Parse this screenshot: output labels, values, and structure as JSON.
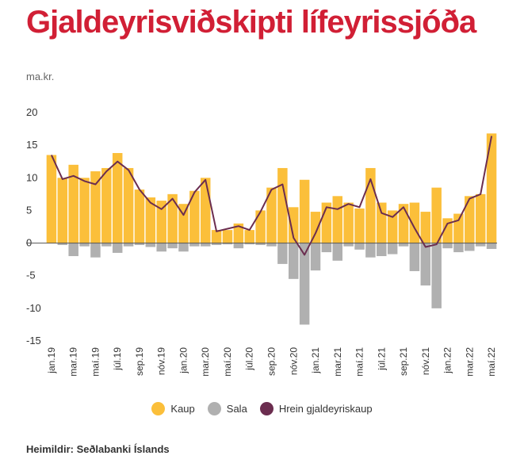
{
  "title": "Gjaldeyrisviðskipti lífeyrissjóða",
  "unit": "ma.kr.",
  "source": "Heimildir: Seðlabanki Íslands",
  "colors": {
    "title": "#d11f35",
    "kaup": "#fbbf3a",
    "sala": "#b0b0b0",
    "hrein": "#6b2d4f"
  },
  "legend": [
    {
      "label": "Kaup",
      "color": "#fbbf3a"
    },
    {
      "label": "Sala",
      "color": "#b0b0b0"
    },
    {
      "label": "Hrein gjaldeyriskaup",
      "color": "#6b2d4f"
    }
  ],
  "chart_data": {
    "type": "bar",
    "ylabel": "ma.kr.",
    "ylim": [
      -15,
      20
    ],
    "yticks": [
      20,
      15,
      10,
      5,
      0,
      -5,
      -10,
      -15
    ],
    "grid": false,
    "legend_position": "bottom",
    "x": [
      "jan.19",
      "feb.19",
      "mar.19",
      "apr.19",
      "maí.19",
      "jún.19",
      "júl.19",
      "ágú.19",
      "sep.19",
      "okt.19",
      "nóv.19",
      "des.19",
      "jan.20",
      "feb.20",
      "mar.20",
      "apr.20",
      "maí.20",
      "jún.20",
      "júl.20",
      "ágú.20",
      "sep.20",
      "okt.20",
      "nóv.20",
      "des.20",
      "jan.21",
      "feb.21",
      "mar.21",
      "apr.21",
      "maí.21",
      "jún.21",
      "júl.21",
      "ágú.21",
      "sep.21",
      "okt.21",
      "nóv.21",
      "des.21",
      "jan.22",
      "feb.22",
      "mar.22",
      "apr.22",
      "maí.22"
    ],
    "tick_labels": [
      "jan.19",
      "mar.19",
      "maí.19",
      "júl.19",
      "sep.19",
      "nóv.19",
      "jan.20",
      "mar.20",
      "maí.20",
      "júl.20",
      "sep.20",
      "nóv.20",
      "jan.21",
      "mar.21",
      "maí.21",
      "júl.21",
      "sep.21",
      "nóv.21",
      "jan.22",
      "mar.22",
      "maí.22"
    ],
    "series": [
      {
        "name": "Kaup",
        "type": "bar",
        "values": [
          13.5,
          10.0,
          12.0,
          10.0,
          11.0,
          11.5,
          13.8,
          11.5,
          8.2,
          7.0,
          6.5,
          7.5,
          6.0,
          8.0,
          10.0,
          2.0,
          2.0,
          3.0,
          2.0,
          5.0,
          8.5,
          11.5,
          5.5,
          9.7,
          4.8,
          6.2,
          7.2,
          6.2,
          5.3,
          11.5,
          6.2,
          5.0,
          6.0,
          6.2,
          4.8,
          8.5,
          3.8,
          4.5,
          7.2,
          7.5,
          16.8
        ]
      },
      {
        "name": "Sala",
        "type": "bar",
        "values": [
          0,
          -0.3,
          -2.0,
          -0.5,
          -2.2,
          -0.5,
          -1.5,
          -0.5,
          -0.3,
          -0.6,
          -1.3,
          -0.8,
          -1.3,
          -0.5,
          -0.5,
          -0.3,
          -0.2,
          -0.8,
          -0.2,
          -0.3,
          -0.5,
          -3.2,
          -5.5,
          -12.5,
          -4.2,
          -1.4,
          -2.7,
          -0.5,
          -1.0,
          -2.2,
          -2.0,
          -1.7,
          -0.5,
          -4.3,
          -6.5,
          -10.0,
          -0.8,
          -1.4,
          -1.2,
          -0.5,
          -0.9
        ]
      },
      {
        "name": "Hrein gjaldeyriskaup",
        "type": "line",
        "values": [
          13.5,
          9.8,
          10.3,
          9.5,
          9.0,
          11.0,
          12.5,
          11.2,
          8.2,
          6.2,
          5.2,
          6.8,
          4.3,
          7.8,
          9.7,
          1.8,
          2.2,
          2.6,
          2.0,
          4.8,
          8.2,
          9.0,
          0.8,
          -1.8,
          1.5,
          5.5,
          5.2,
          6.0,
          5.5,
          9.8,
          4.6,
          4.0,
          5.5,
          2.3,
          -0.6,
          -0.2,
          3.0,
          3.5,
          6.8,
          7.5,
          16.4
        ]
      }
    ]
  }
}
